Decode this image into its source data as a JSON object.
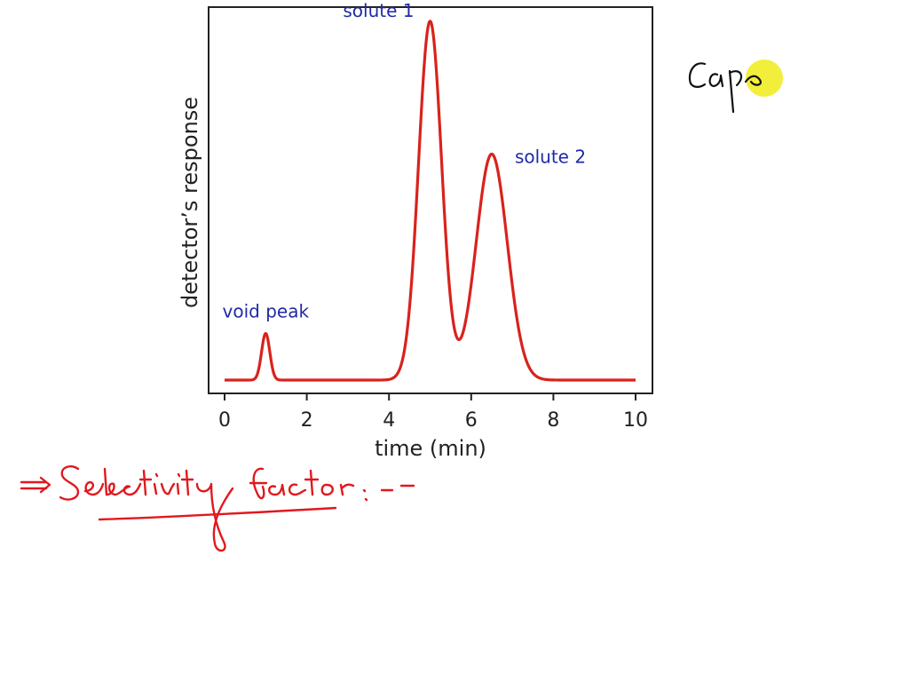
{
  "chart_data": {
    "type": "line",
    "title": "",
    "xlabel": "time (min)",
    "ylabel": "detector’s response",
    "xlim": [
      0,
      10
    ],
    "x_ticks": [
      0,
      2,
      4,
      6,
      8,
      10
    ],
    "y_ticks_shown": false,
    "grid": false,
    "series": [
      {
        "color": "#d9221c",
        "peaks": [
          {
            "label": "void peak",
            "time": 1.0,
            "height": 0.13,
            "width": 0.1
          },
          {
            "label": "solute 1",
            "time": 5.0,
            "height": 1.0,
            "width": 0.28
          },
          {
            "label": "solute 2",
            "time": 6.5,
            "height": 0.63,
            "width": 0.38
          }
        ]
      }
    ]
  },
  "annotations": {
    "handwriting_main": "⇒ Selectivity factor: --",
    "handwriting_corner": "Capa",
    "colors": {
      "ink_red": "#e0191e",
      "ink_black": "#111111",
      "cursor": "#f2ee3c"
    }
  }
}
